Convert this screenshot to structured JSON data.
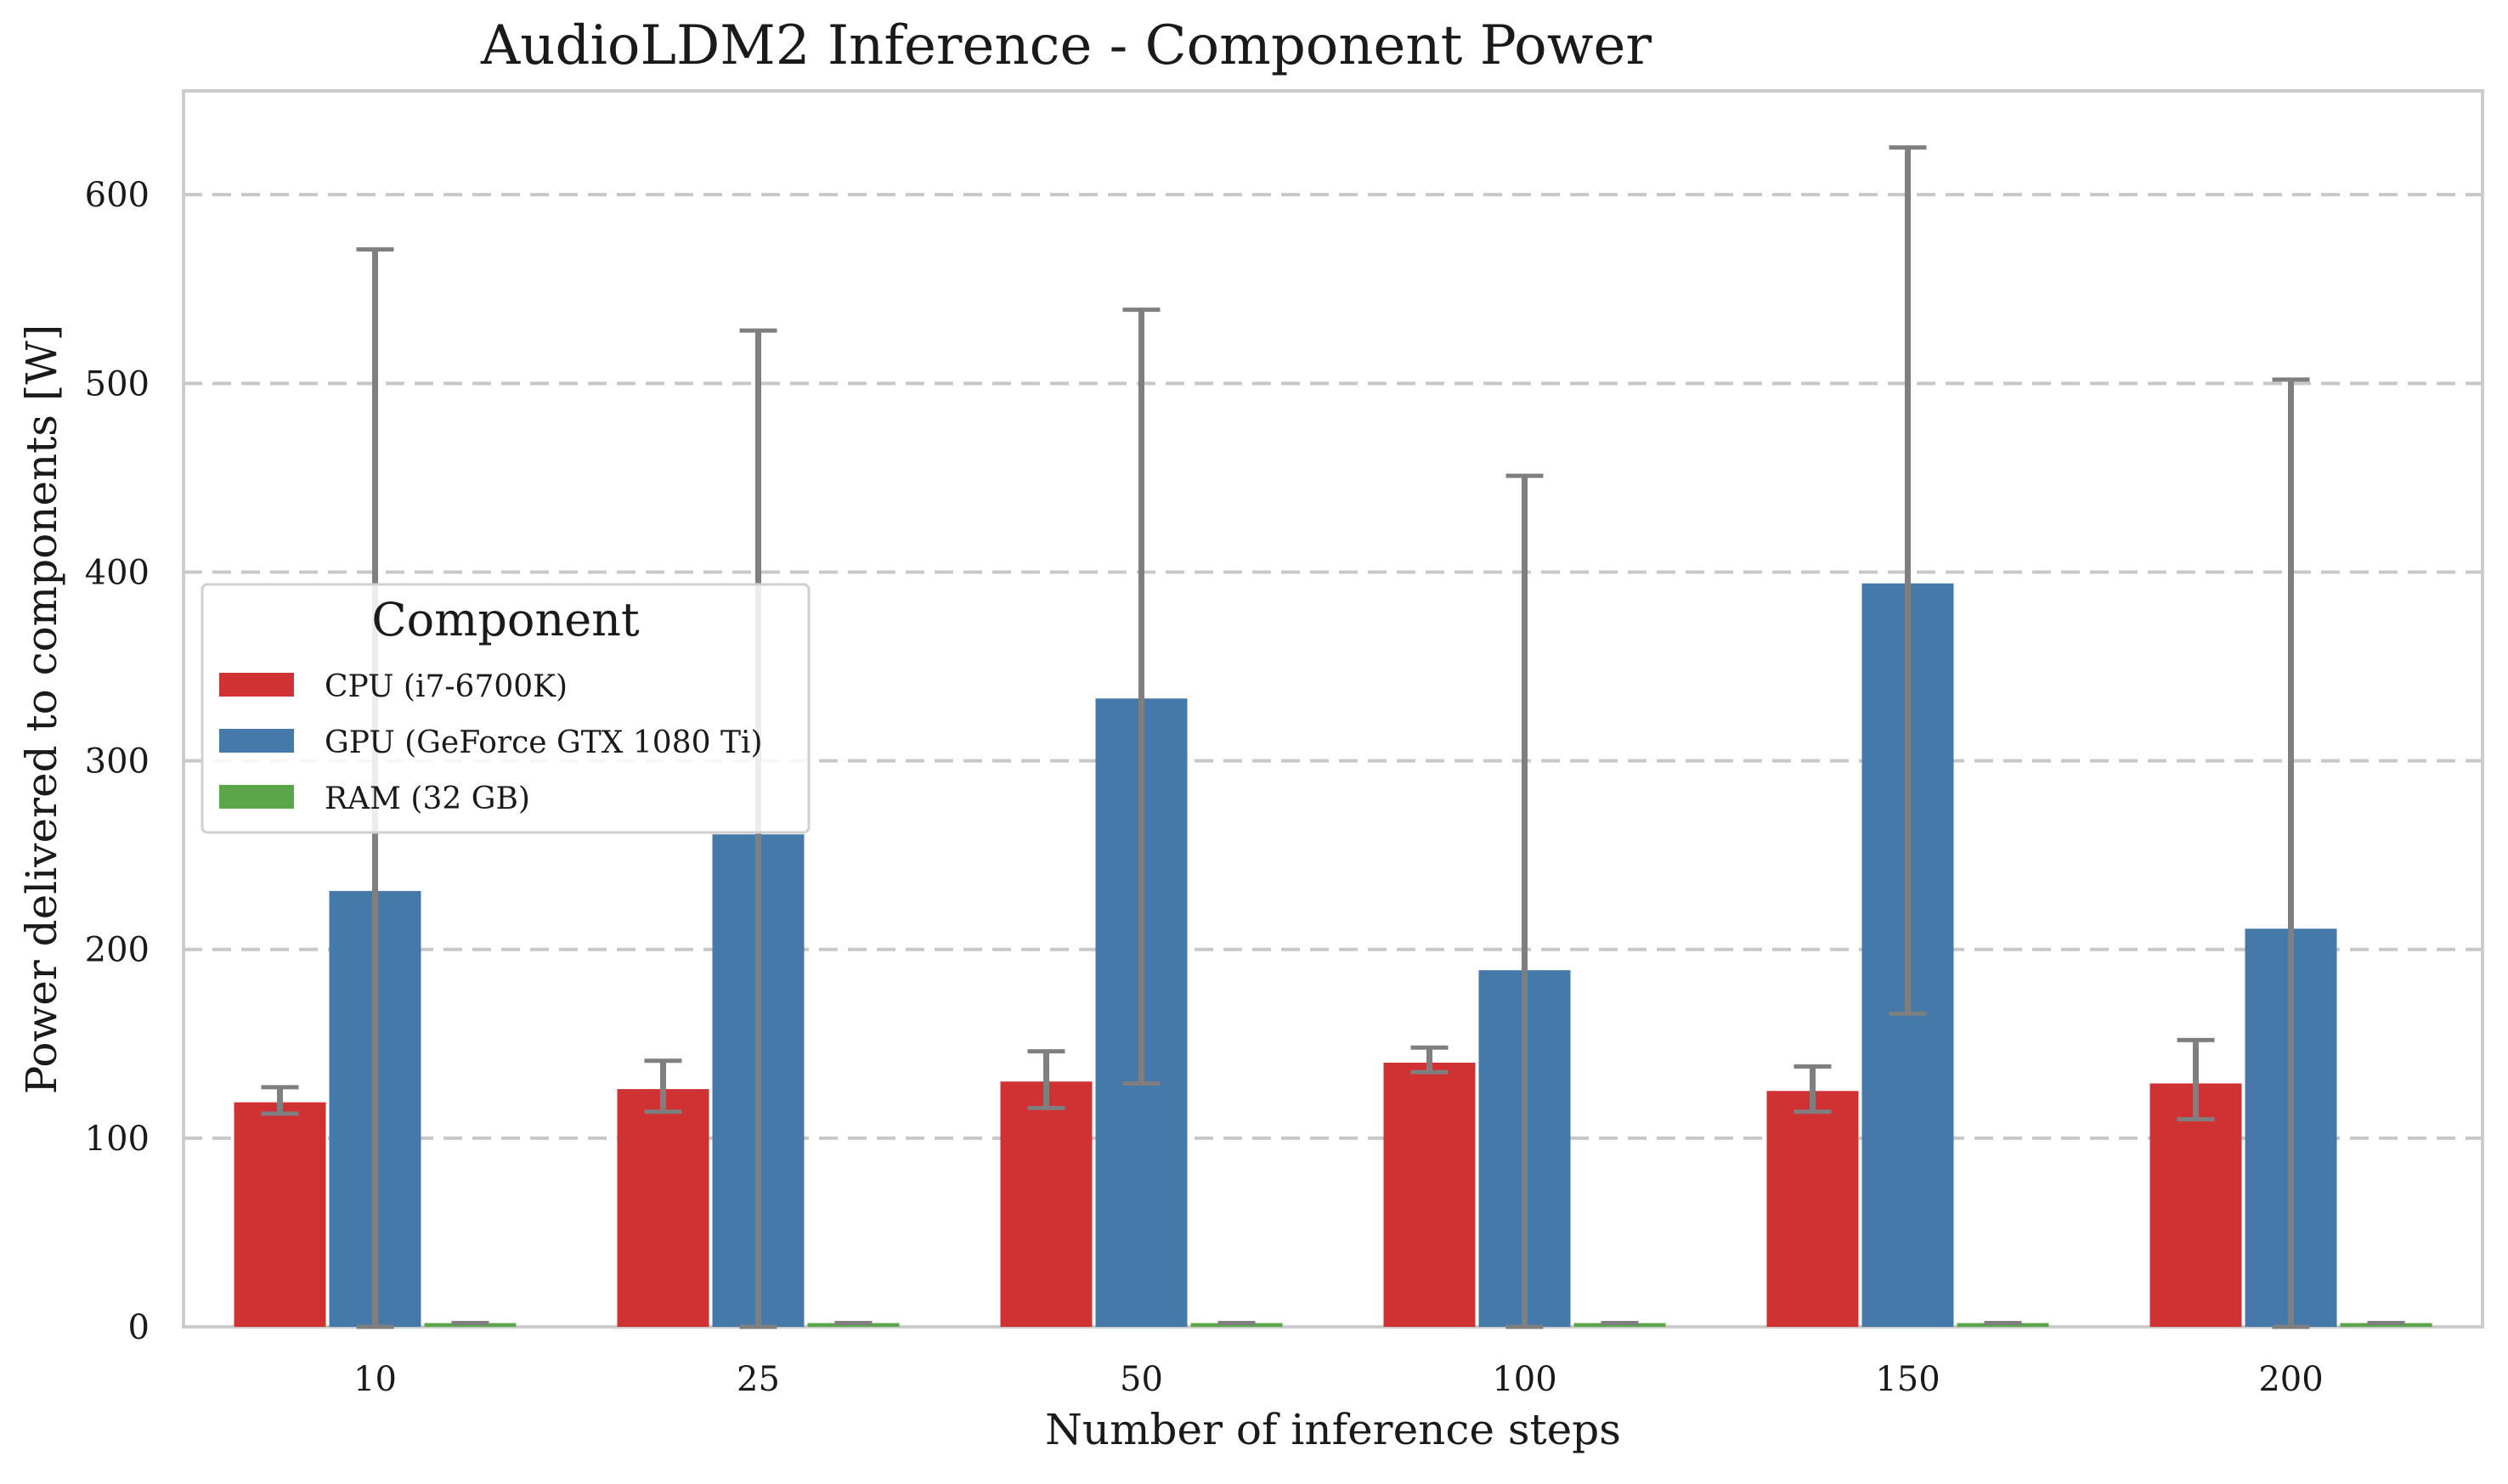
{
  "chart_data": {
    "type": "bar",
    "title": "AudioLDM2 Inference - Component Power",
    "xlabel": "Number of inference steps",
    "ylabel": "Power delivered to components [W]",
    "categories": [
      "10",
      "25",
      "50",
      "100",
      "150",
      "200"
    ],
    "ylim": [
      0,
      655
    ],
    "yticks": [
      0,
      100,
      200,
      300,
      400,
      500,
      600
    ],
    "grid": "horizontal-dashed",
    "legend": {
      "title": "Component",
      "placement": "center-left"
    },
    "series": [
      {
        "name": "CPU (i7-6700K)",
        "color": "#d03133",
        "values": [
          119,
          126,
          130,
          140,
          125,
          129
        ],
        "error_low": [
          113,
          114,
          116,
          135,
          114,
          110
        ],
        "error_high": [
          127,
          141,
          146,
          148,
          138,
          152
        ]
      },
      {
        "name": "GPU (GeForce GTX 1080 Ti)",
        "color": "#4479aa",
        "values": [
          231,
          261,
          333,
          189,
          394,
          211
        ],
        "error_low": [
          0,
          0,
          129,
          0,
          166,
          0
        ],
        "error_high": [
          571,
          528,
          539,
          451,
          625,
          502
        ]
      },
      {
        "name": "RAM (32 GB)",
        "color": "#5ba64a",
        "values": [
          2,
          2,
          2,
          2,
          2,
          2
        ],
        "error_low": [
          2,
          2,
          2,
          2,
          2,
          2
        ],
        "error_high": [
          2,
          2,
          2,
          2,
          2,
          2
        ]
      }
    ],
    "error_bar_color": "#7f7f7f"
  }
}
